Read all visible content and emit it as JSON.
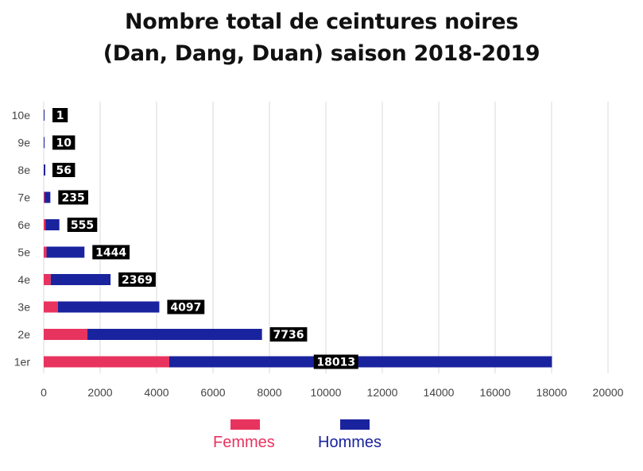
{
  "chart_data": {
    "type": "bar",
    "orientation": "horizontal",
    "stacked": true,
    "title": [
      "Nombre total de ceintures noires",
      "(Dan, Dang, Duan) saison 2018-2019"
    ],
    "categories": [
      "10e",
      "9e",
      "8e",
      "7e",
      "6e",
      "5e",
      "4e",
      "3e",
      "2e",
      "1er"
    ],
    "series": [
      {
        "name": "Femmes",
        "color": "#e8335f",
        "values": [
          0,
          1,
          2,
          30,
          60,
          100,
          250,
          500,
          1550,
          4450
        ]
      },
      {
        "name": "Hommes",
        "color": "#1a239e",
        "values": [
          1,
          9,
          54,
          205,
          495,
          1344,
          2119,
          3597,
          6186,
          13563
        ]
      }
    ],
    "totals": [
      "1",
      "10",
      "56",
      "235",
      "555",
      "1444",
      "2369",
      "4097",
      "7736",
      "18013"
    ],
    "xlim": [
      0,
      20000
    ],
    "xticks": [
      "0",
      "2000",
      "4000",
      "6000",
      "8000",
      "10000",
      "12000",
      "14000",
      "16000",
      "18000",
      "20000"
    ],
    "grid": true,
    "legend_position": "bottom"
  }
}
